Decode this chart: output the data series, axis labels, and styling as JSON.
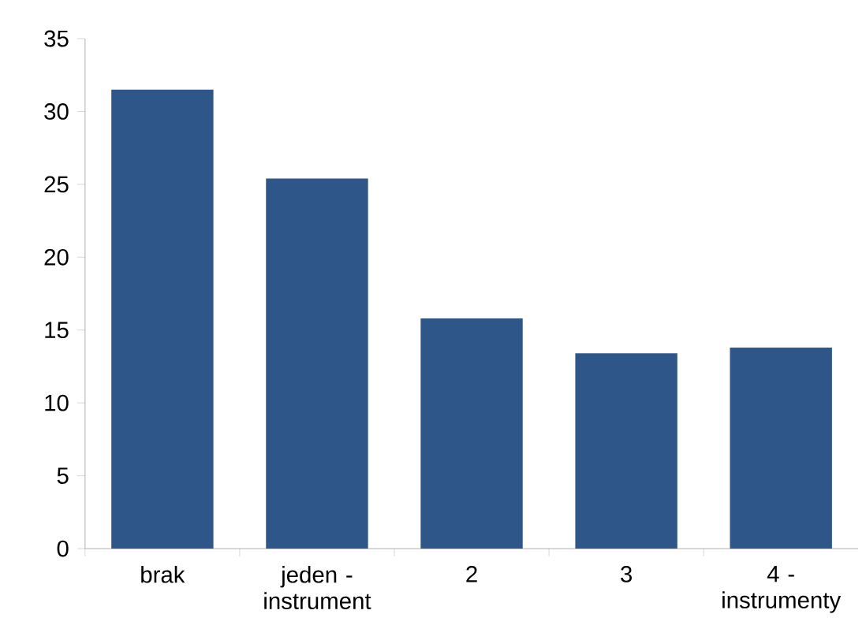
{
  "chart_data": {
    "type": "bar",
    "categories": [
      "brak",
      "jeden - instrument",
      "2",
      "3",
      "4 - instrumenty"
    ],
    "values": [
      31.5,
      25.4,
      15.8,
      13.4,
      13.8
    ],
    "color": "#2f5689",
    "ylim": [
      0,
      35
    ],
    "yticks": [
      0,
      5,
      10,
      15,
      20,
      25,
      30,
      35
    ]
  }
}
